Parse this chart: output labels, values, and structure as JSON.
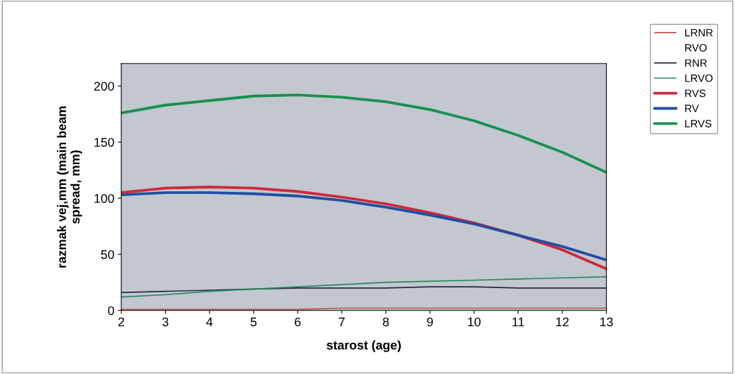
{
  "chart_data": {
    "type": "line",
    "xlabel": "starost (age)",
    "ylabel": "razmak vej,mm (main beam\nspread, mm)",
    "x": [
      2,
      3,
      4,
      5,
      6,
      7,
      8,
      9,
      10,
      11,
      12,
      13
    ],
    "xlim": [
      2,
      13
    ],
    "xticks": [
      2,
      3,
      4,
      5,
      6,
      7,
      8,
      9,
      10,
      11,
      12,
      13
    ],
    "ylim": [
      0,
      220
    ],
    "yticks": [
      0,
      50,
      100,
      150,
      200
    ],
    "grid": false,
    "legend": "top right",
    "marker": "none",
    "series": [
      {
        "name": "LRNR",
        "color": "#c0504d",
        "values": [
          1,
          1,
          1,
          1,
          1,
          2,
          2,
          2,
          2,
          2,
          2,
          2
        ]
      },
      {
        "name": "RVO",
        "values": [
          null,
          null,
          null,
          null,
          null,
          null,
          null,
          null,
          null,
          null,
          null,
          null
        ]
      },
      {
        "name": "RNR",
        "color": "#1f2a44",
        "values": [
          16,
          17,
          18,
          19,
          20,
          20,
          20,
          21,
          21,
          20,
          20,
          20
        ]
      },
      {
        "name": "LRVO",
        "color": "#1f8a5a",
        "values": [
          12,
          14,
          17,
          19,
          21,
          23,
          25,
          26,
          27,
          28,
          29,
          30
        ]
      },
      {
        "name": "RVS",
        "color": "#d0283c",
        "values": [
          105,
          109,
          110,
          109,
          106,
          101,
          95,
          87,
          78,
          67,
          54,
          37
        ]
      },
      {
        "name": "RV",
        "color": "#1f4fa0",
        "values": [
          103,
          105,
          105,
          104,
          102,
          98,
          92,
          85,
          77,
          67,
          57,
          45
        ]
      },
      {
        "name": "LRVS",
        "color": "#17914f",
        "values": [
          176,
          183,
          187,
          191,
          192,
          190,
          186,
          179,
          169,
          156,
          141,
          123
        ]
      }
    ]
  }
}
